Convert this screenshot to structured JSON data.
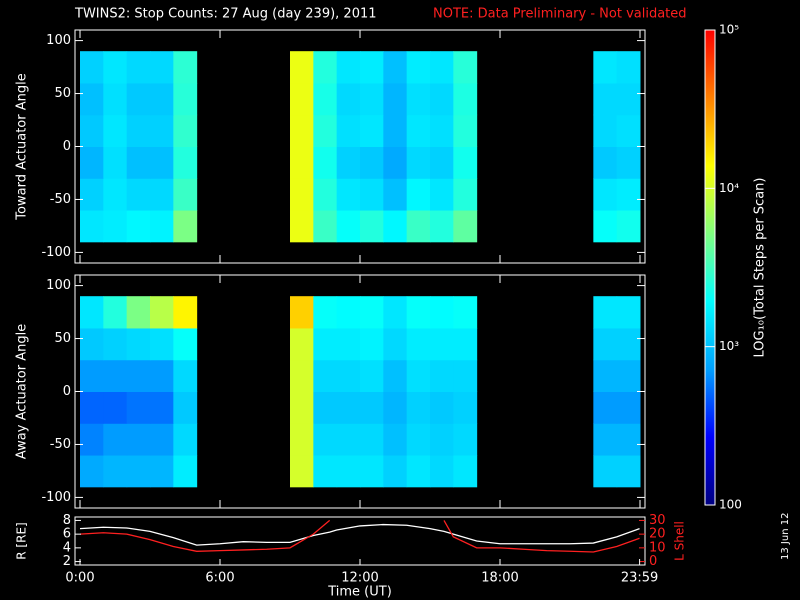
{
  "header": {
    "title": "TWINS2: Stop Counts: 27 Aug (day 239), 2011",
    "note": "NOTE: Data Preliminary - Not validated",
    "footer": "13 Jun 12"
  },
  "colorbar": {
    "label": "LOG₁₀(Total Steps per Scan)",
    "log": true,
    "zlim": [
      100,
      100000
    ],
    "zticks": [
      100,
      {
        "value": 1000,
        "label": "10³"
      },
      {
        "value": 10000,
        "label": "10⁴"
      },
      {
        "value": 100000,
        "label": "10⁵"
      }
    ],
    "colors": [
      "#000080",
      "#0000ff",
      "#00a0ff",
      "#00ffff",
      "#80ff80",
      "#ffff00",
      "#ff8000",
      "#ff0000"
    ]
  },
  "chart_data": [
    {
      "type": "heatmap",
      "ylabel": "Toward Actuator Angle",
      "ylim": [
        -110,
        110
      ],
      "yticks": [
        -100,
        -50,
        0,
        50,
        100
      ],
      "xlim": [
        0,
        24
      ],
      "xticks": [
        0,
        6,
        12,
        18,
        24
      ],
      "x_bins": [
        0,
        1,
        2,
        3,
        4,
        5,
        6,
        7,
        8,
        9,
        10,
        11,
        12,
        13,
        14,
        15,
        16,
        17,
        18,
        19,
        20,
        21,
        22,
        23,
        24
      ],
      "y_bins": [
        -90,
        -60,
        -30,
        0,
        30,
        60,
        90
      ],
      "values": [
        [
          1500,
          1600,
          1800,
          1700,
          5000,
          null,
          null,
          null,
          null,
          12000,
          3000,
          2000,
          2500,
          1800,
          3000,
          2500,
          4000,
          null,
          null,
          null,
          null,
          null,
          2000,
          2200
        ],
        [
          1200,
          1500,
          1300,
          1300,
          3000,
          null,
          null,
          null,
          null,
          12000,
          2500,
          1500,
          1400,
          1000,
          1800,
          1500,
          2500,
          null,
          null,
          null,
          null,
          null,
          1500,
          1600
        ],
        [
          900,
          1400,
          1000,
          1000,
          2500,
          null,
          null,
          null,
          null,
          12000,
          2200,
          1200,
          1100,
          800,
          1300,
          1200,
          2200,
          null,
          null,
          null,
          null,
          null,
          1100,
          1200
        ],
        [
          1100,
          1500,
          1200,
          1200,
          2800,
          null,
          null,
          null,
          null,
          12000,
          2500,
          1400,
          1500,
          900,
          1500,
          1400,
          2500,
          null,
          null,
          null,
          null,
          null,
          1300,
          1400
        ],
        [
          1000,
          1400,
          1100,
          1100,
          2600,
          null,
          null,
          null,
          null,
          12000,
          2300,
          1300,
          1400,
          900,
          1400,
          1300,
          2400,
          null,
          null,
          null,
          null,
          null,
          1300,
          1300
        ],
        [
          1200,
          1500,
          1300,
          1300,
          2700,
          null,
          null,
          null,
          null,
          12000,
          2500,
          1500,
          1600,
          1000,
          1600,
          1500,
          2600,
          null,
          null,
          null,
          null,
          null,
          1500,
          1400
        ]
      ]
    },
    {
      "type": "heatmap",
      "ylabel": "Away Actuator Angle",
      "ylim": [
        -110,
        110
      ],
      "yticks": [
        -100,
        -50,
        0,
        50,
        100
      ],
      "xlim": [
        0,
        24
      ],
      "xticks": [
        0,
        6,
        12,
        18,
        24
      ],
      "x_bins": [
        0,
        1,
        2,
        3,
        4,
        5,
        6,
        7,
        8,
        9,
        10,
        11,
        12,
        13,
        14,
        15,
        16,
        17,
        18,
        19,
        20,
        21,
        22,
        23,
        24
      ],
      "y_bins": [
        -90,
        -60,
        -30,
        0,
        30,
        60,
        90
      ],
      "values": [
        [
          800,
          900,
          900,
          900,
          1600,
          null,
          null,
          null,
          null,
          10000,
          1500,
          1500,
          1500,
          1200,
          1500,
          1300,
          1500,
          null,
          null,
          null,
          null,
          null,
          1200,
          1200
        ],
        [
          600,
          700,
          700,
          700,
          1300,
          null,
          null,
          null,
          null,
          10000,
          1300,
          1300,
          1300,
          1000,
          1300,
          1200,
          1300,
          null,
          null,
          null,
          null,
          null,
          900,
          900
        ],
        [
          500,
          500,
          550,
          550,
          1100,
          null,
          null,
          null,
          null,
          10000,
          1100,
          1100,
          1100,
          900,
          1200,
          1100,
          1200,
          null,
          null,
          null,
          null,
          null,
          700,
          700
        ],
        [
          700,
          700,
          700,
          700,
          1300,
          null,
          null,
          null,
          null,
          10000,
          1300,
          1300,
          1400,
          1000,
          1400,
          1300,
          1300,
          null,
          null,
          null,
          null,
          null,
          900,
          900
        ],
        [
          1100,
          1200,
          1300,
          1400,
          2000,
          null,
          null,
          null,
          null,
          10000,
          1600,
          1600,
          1700,
          1300,
          1600,
          1600,
          1600,
          null,
          null,
          null,
          null,
          null,
          1200,
          1200
        ],
        [
          1500,
          2500,
          5000,
          8000,
          15000,
          null,
          null,
          null,
          null,
          20000,
          2000,
          1900,
          2000,
          1500,
          2000,
          1900,
          2000,
          null,
          null,
          null,
          null,
          null,
          1500,
          1500
        ]
      ]
    },
    {
      "type": "line",
      "xlabel": "Time (UT)",
      "ylabel": "R [RE]",
      "y2label": "L Shell",
      "xlim": [
        0,
        24
      ],
      "xticks": [
        {
          "value": 0,
          "label": "0:00"
        },
        {
          "value": 6,
          "label": "6:00"
        },
        {
          "value": 12,
          "label": "12:00"
        },
        {
          "value": 18,
          "label": "18:00"
        },
        {
          "value": 23.983,
          "label": "23:59"
        }
      ],
      "ylim": [
        1.5,
        8.5
      ],
      "yticks": [
        2,
        4,
        6,
        8
      ],
      "y2lim": [
        -2.5,
        32.5
      ],
      "y2ticks": [
        0,
        10,
        20,
        30
      ],
      "x": [
        0,
        1,
        2,
        3,
        4,
        5,
        6,
        7,
        8,
        9,
        10,
        10.7,
        11,
        12,
        13,
        14,
        15,
        15.6,
        16,
        17,
        18,
        19,
        20,
        21,
        22,
        23,
        23.98
      ],
      "series": [
        {
          "color": "#ffffff",
          "values": [
            6.8,
            7.0,
            6.9,
            6.4,
            5.5,
            4.4,
            4.6,
            4.9,
            4.8,
            4.8,
            5.8,
            6.3,
            6.6,
            7.2,
            7.4,
            7.3,
            6.8,
            6.4,
            6.0,
            5.0,
            4.6,
            4.6,
            4.6,
            4.6,
            4.7,
            5.6,
            6.8
          ]
        },
        {
          "color": "#ff2020",
          "axis": "y2",
          "values": [
            20,
            21,
            20,
            16,
            11,
            7.5,
            8,
            8.5,
            9,
            10,
            20,
            30,
            null,
            null,
            null,
            null,
            null,
            30,
            18,
            10,
            10,
            9,
            8,
            7.5,
            7,
            11,
            17
          ]
        }
      ]
    }
  ]
}
